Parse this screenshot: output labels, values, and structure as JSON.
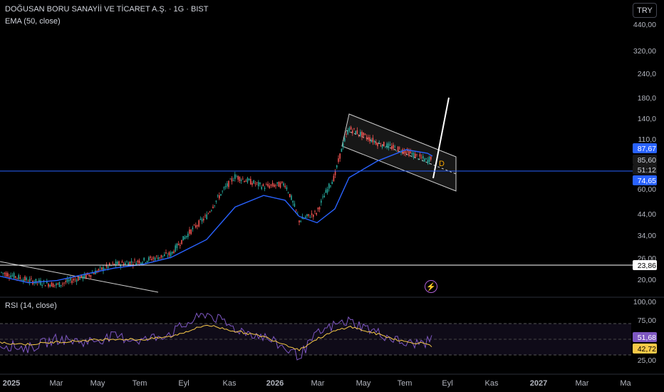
{
  "header": {
    "title": "DOĞUSAN BORU SANAYİİ VE TİCARET A.Ş. · 1G · BIST",
    "indicator": "EMA (50, close)",
    "currency": "TRY"
  },
  "rsi_panel": {
    "label": "RSI (14, close)"
  },
  "drawing": {
    "label": "D"
  },
  "colors": {
    "background": "#000000",
    "up_candle": "#26a69a",
    "down_candle": "#ef5350",
    "ema": "#2962ff",
    "rsi": "#7e57c2",
    "rsi_ma": "#f7c948",
    "price_line": "#2962ff",
    "level_line": "#ffffff"
  },
  "chart_data": [
    {
      "type": "candlestick",
      "title": "DOĞUSAN BORU SANAYİİ VE TİCARET A.Ş.",
      "scale": "log",
      "y_ticks": [
        "440,00",
        "320,00",
        "240,0",
        "180,0",
        "140,0",
        "110,0",
        "60,00",
        "44,00",
        "34,00",
        "26,00",
        "20,00"
      ],
      "x_ticks": [
        "2025",
        "Mar",
        "May",
        "Tem",
        "Eyl",
        "Kas",
        "2026",
        "Mar",
        "May",
        "Tem",
        "Eyl",
        "Kas",
        "2027",
        "Mar",
        "Ma"
      ],
      "price_labels": [
        "87,67",
        "85,60",
        "51:12",
        "74,65",
        "23,86"
      ],
      "horizontal_levels": [
        74.65,
        23.86
      ],
      "series": [
        {
          "name": "EMA (50, close)",
          "values": [
            19,
            17.5,
            18,
            19.5,
            21,
            22,
            24,
            30,
            45,
            52,
            49,
            40,
            37,
            44,
            65,
            80,
            92,
            88,
            85
          ]
        },
        {
          "values": [
            20,
            18,
            17,
            19,
            22,
            23,
            25,
            40,
            66,
            58,
            60,
            38,
            42,
            66,
            120,
            100,
            90,
            80,
            85.6
          ]
        }
      ],
      "x_dates": [
        "2025-01",
        "2025-02",
        "2025-04",
        "2025-05",
        "2025-06",
        "2025-07",
        "2025-08",
        "2025-10",
        "2025-11",
        "2025-12",
        "2026-01",
        "2026-02",
        "2026-03",
        "2026-04",
        "2026-04b",
        "2026-05",
        "2026-06",
        "2026-07",
        "2026-08"
      ]
    },
    {
      "type": "line",
      "title": "RSI (14, close)",
      "y_ticks": [
        "100,00",
        "75,00",
        "51,68",
        "42,72",
        "25,00"
      ],
      "bands": [
        70,
        30
      ],
      "series": [
        {
          "name": "RSI",
          "values": [
            45,
            40,
            52,
            48,
            55,
            50,
            60,
            85,
            65,
            55,
            40,
            30,
            58,
            70,
            75,
            60,
            45,
            48,
            51.68
          ]
        },
        {
          "values": [
            47,
            45,
            48,
            50,
            52,
            51,
            55,
            70,
            62,
            55,
            45,
            38,
            52,
            62,
            68,
            58,
            48,
            46,
            42.72
          ]
        }
      ]
    }
  ]
}
